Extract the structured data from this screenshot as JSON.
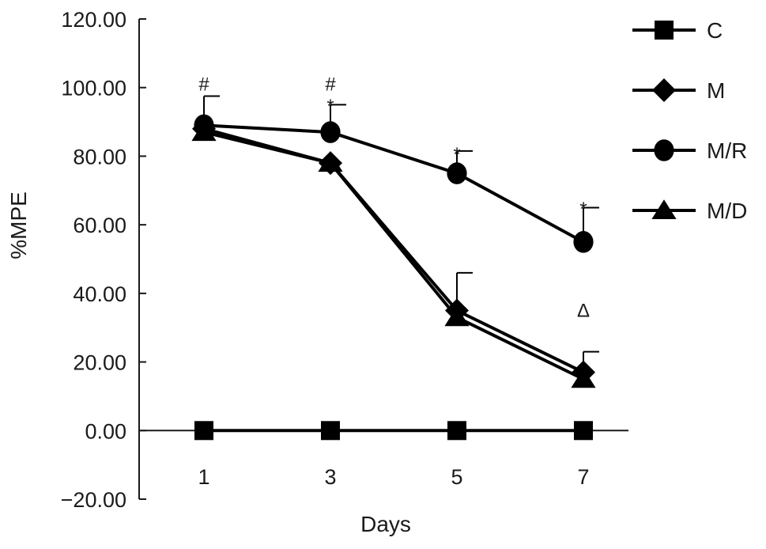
{
  "chart_data": {
    "type": "line",
    "title": "",
    "xlabel": "Days",
    "ylabel": "%MPE",
    "x": [
      1,
      3,
      5,
      7
    ],
    "x_tick_labels": [
      "1",
      "3",
      "5",
      "7"
    ],
    "y_tick_labels": [
      "120.00",
      "100.00",
      "80.00",
      "60.00",
      "40.00",
      "20.00",
      "0.00",
      "−20.00"
    ],
    "y_ticks": [
      120,
      100,
      80,
      60,
      40,
      20,
      0,
      -20
    ],
    "ylim": [
      -20,
      120
    ],
    "grid": false,
    "legend_position": "right",
    "series": [
      {
        "name": "C",
        "marker": "square",
        "values": [
          0,
          0,
          0,
          0
        ],
        "errors": [
          0,
          0,
          0,
          0
        ]
      },
      {
        "name": "M",
        "marker": "diamond",
        "values": [
          88,
          78,
          35,
          17
        ],
        "errors": [
          0,
          0,
          0,
          6
        ]
      },
      {
        "name": "M/R",
        "marker": "circle",
        "values": [
          89,
          87,
          75,
          55
        ],
        "errors": [
          8.5,
          8,
          6.5,
          10
        ]
      },
      {
        "name": "M/D",
        "marker": "triangle",
        "values": [
          87,
          78,
          33,
          15
        ],
        "errors": [
          0,
          0,
          13,
          0
        ]
      }
    ],
    "annotations": [
      {
        "x": 1,
        "y": 101,
        "text": "#"
      },
      {
        "x": 3,
        "y": 101,
        "text": "#"
      },
      {
        "x": 3,
        "y": 96,
        "text": "*"
      },
      {
        "x": 5,
        "y": 82,
        "text": "*"
      },
      {
        "x": 7,
        "y": 66,
        "text": "*"
      },
      {
        "x": 7,
        "y": 35,
        "text": "Δ"
      }
    ],
    "colors": {
      "line": "#000000",
      "axis": "#1a1a1a",
      "text": "#1a1a1a"
    }
  }
}
